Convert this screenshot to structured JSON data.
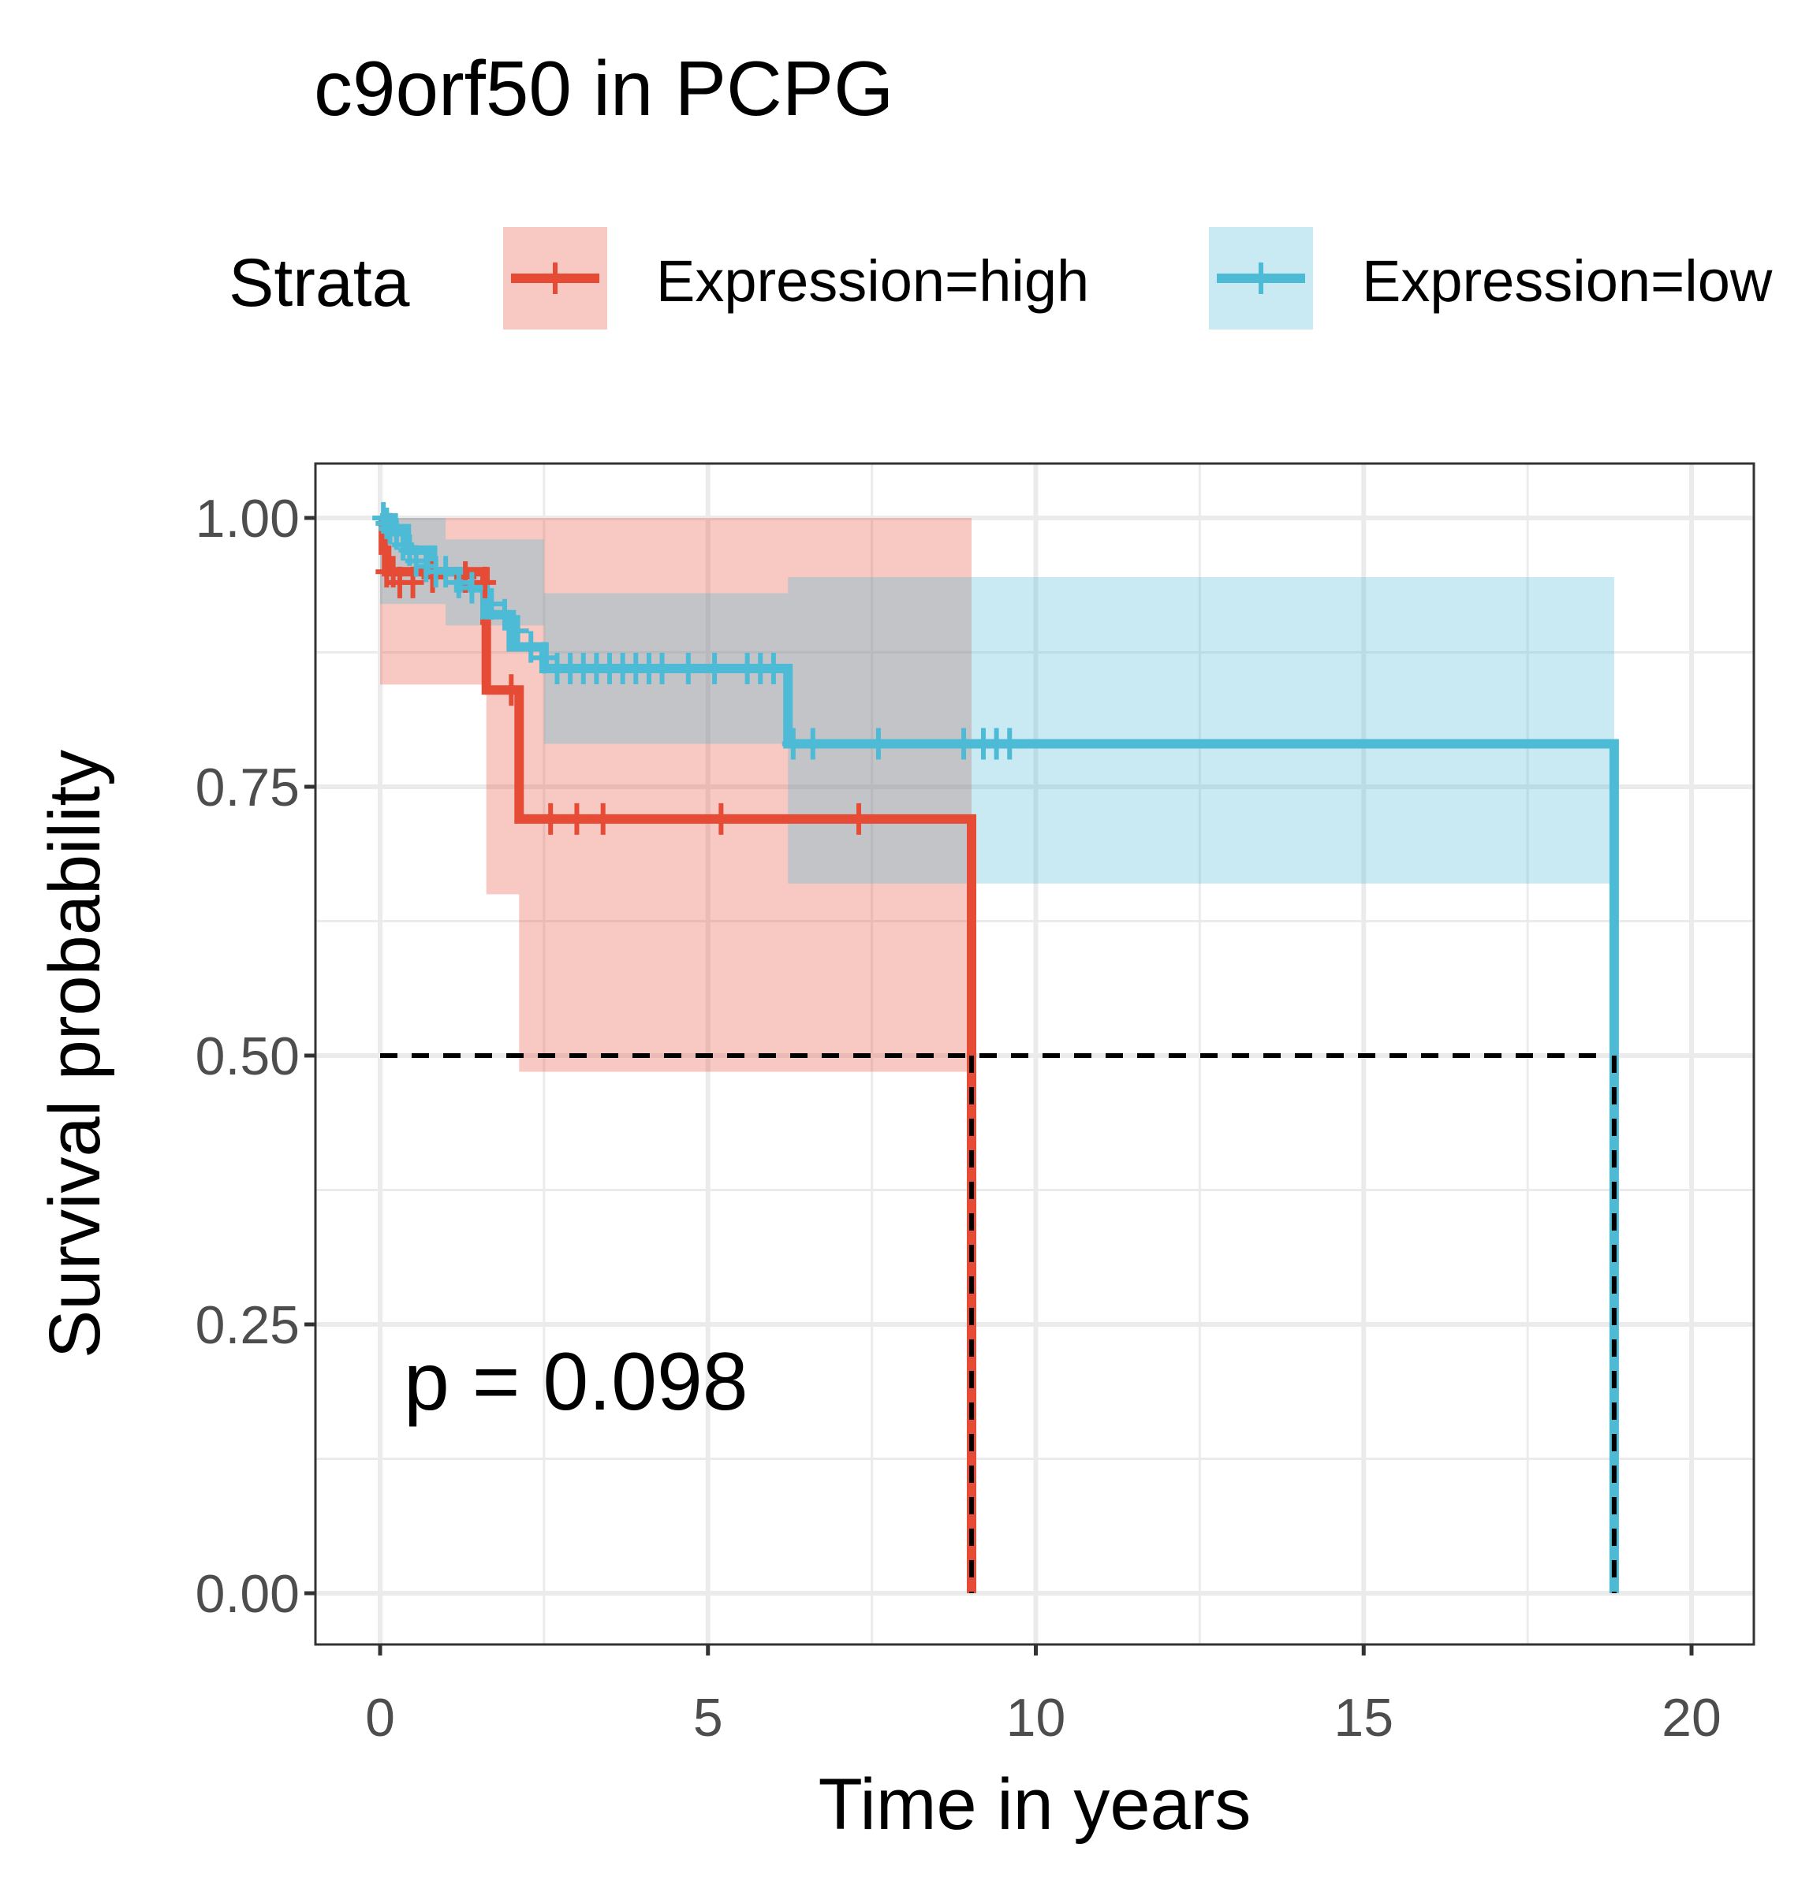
{
  "chart_data": {
    "type": "line",
    "subtype": "kaplan-meier",
    "title": "c9orf50 in PCPG",
    "xlabel": "Time in years",
    "ylabel": "Survival probability",
    "xlim": [
      -1,
      21
    ],
    "ylim": [
      0,
      1.05
    ],
    "x_ticks": [
      0,
      5,
      10,
      15,
      20
    ],
    "x_tick_labels": [
      "0",
      "5",
      "10",
      "15",
      "20"
    ],
    "y_ticks": [
      0,
      0.25,
      0.5,
      0.75,
      1.0
    ],
    "y_tick_labels": [
      "0.00",
      "0.25",
      "0.50",
      "0.75",
      "1.00"
    ],
    "grid": true,
    "legend": {
      "title": "Strata",
      "position": "top",
      "entries": [
        "Expression=high",
        "Expression=low"
      ]
    },
    "annotation": "p = 0.098",
    "median_line": 0.5,
    "series": [
      {
        "name": "Expression=high",
        "color": "#E64B35",
        "steps": [
          [
            0,
            1.0
          ],
          [
            0.05,
            0.97
          ],
          [
            0.1,
            0.95
          ],
          [
            1.6,
            0.905
          ],
          [
            1.62,
            0.84
          ],
          [
            2.1,
            0.84
          ],
          [
            2.12,
            0.72
          ],
          [
            9.0,
            0.72
          ],
          [
            9.02,
            0.0
          ]
        ],
        "ci": [
          [
            0,
            0.845,
            1.0
          ],
          [
            1.6,
            0.845,
            1.0
          ],
          [
            1.62,
            0.65,
            1.0
          ],
          [
            2.12,
            0.485,
            1.0
          ],
          [
            9.02,
            0.485,
            1.0
          ]
        ],
        "censors": [
          [
            0.1,
            0.95
          ],
          [
            0.2,
            0.95
          ],
          [
            0.3,
            0.94
          ],
          [
            0.5,
            0.94
          ],
          [
            0.8,
            0.945
          ],
          [
            1.3,
            0.945
          ],
          [
            1.6,
            0.94
          ],
          [
            2.0,
            0.84
          ],
          [
            2.6,
            0.72
          ],
          [
            3.0,
            0.72
          ],
          [
            3.4,
            0.72
          ],
          [
            5.2,
            0.72
          ],
          [
            7.3,
            0.72
          ]
        ]
      },
      {
        "name": "Expression=low",
        "color": "#4DBBD5",
        "steps": [
          [
            0,
            1.0
          ],
          [
            0.2,
            0.99
          ],
          [
            0.4,
            0.97
          ],
          [
            0.8,
            0.95
          ],
          [
            1.2,
            0.935
          ],
          [
            1.6,
            0.91
          ],
          [
            2.0,
            0.88
          ],
          [
            2.5,
            0.86
          ],
          [
            6.2,
            0.86
          ],
          [
            6.22,
            0.79
          ],
          [
            18.8,
            0.79
          ],
          [
            18.82,
            0.0
          ]
        ],
        "ci": [
          [
            0,
            0.92,
            1.0
          ],
          [
            1.0,
            0.9,
            0.98
          ],
          [
            2.5,
            0.79,
            0.93
          ],
          [
            6.22,
            0.66,
            0.945
          ],
          [
            18.82,
            0.66,
            0.945
          ]
        ],
        "censors": [
          [
            0.05,
            1.0
          ],
          [
            0.1,
            0.995
          ],
          [
            0.15,
            0.99
          ],
          [
            0.25,
            0.985
          ],
          [
            0.35,
            0.975
          ],
          [
            0.45,
            0.97
          ],
          [
            0.55,
            0.96
          ],
          [
            0.7,
            0.955
          ],
          [
            0.85,
            0.95
          ],
          [
            1.0,
            0.95
          ],
          [
            1.2,
            0.94
          ],
          [
            1.4,
            0.935
          ],
          [
            1.7,
            0.92
          ],
          [
            1.9,
            0.91
          ],
          [
            2.1,
            0.895
          ],
          [
            2.3,
            0.88
          ],
          [
            2.5,
            0.87
          ],
          [
            2.7,
            0.86
          ],
          [
            2.9,
            0.86
          ],
          [
            3.1,
            0.86
          ],
          [
            3.3,
            0.86
          ],
          [
            3.5,
            0.86
          ],
          [
            3.7,
            0.86
          ],
          [
            3.9,
            0.86
          ],
          [
            4.1,
            0.86
          ],
          [
            4.3,
            0.86
          ],
          [
            4.7,
            0.86
          ],
          [
            5.1,
            0.86
          ],
          [
            5.6,
            0.86
          ],
          [
            5.8,
            0.86
          ],
          [
            6.0,
            0.86
          ],
          [
            6.3,
            0.79
          ],
          [
            6.6,
            0.79
          ],
          [
            7.6,
            0.79
          ],
          [
            8.9,
            0.79
          ],
          [
            9.2,
            0.79
          ],
          [
            9.4,
            0.79
          ],
          [
            9.6,
            0.79
          ]
        ]
      }
    ]
  }
}
